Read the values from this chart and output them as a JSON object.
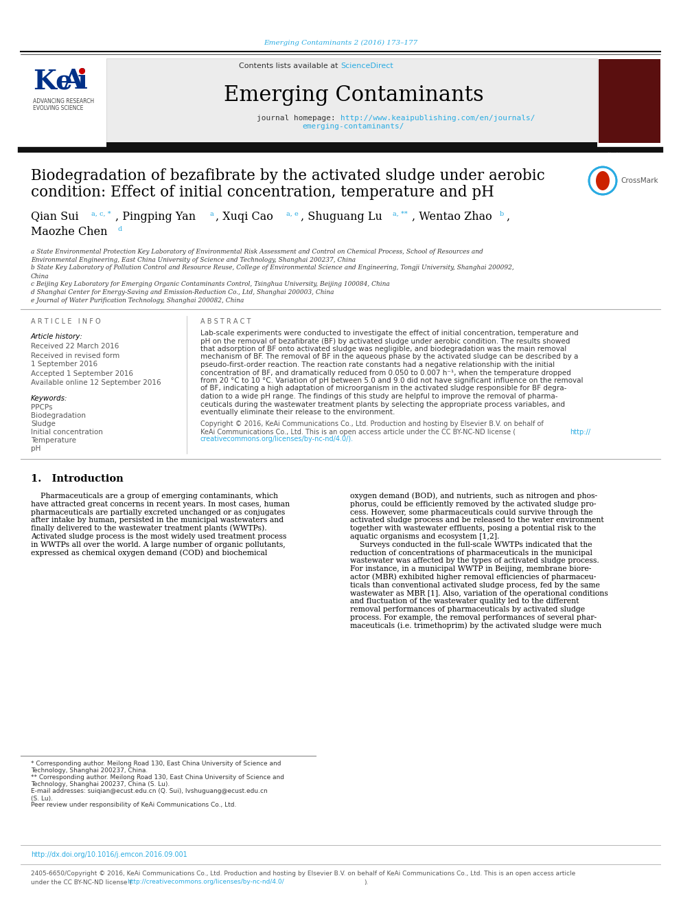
{
  "bg_color": "#ffffff",
  "journal_ref": "Emerging Contaminants 2 (2016) 173–177",
  "journal_ref_color": "#29ABE2",
  "header_bg": "#e8e8e8",
  "header_text_prefix": "Contents lists available at ",
  "header_sciencedirect": "ScienceDirect",
  "header_link_color": "#29ABE2",
  "journal_name": "Emerging Contaminants",
  "journal_homepage_prefix": "journal homepage: ",
  "journal_url_line1": "http://www.keaipublishing.com/en/journals/",
  "journal_url_line2": "emerging-contaminants/",
  "dark_bar_color": "#1a1a1a",
  "title_line1": "Biodegradation of bezafibrate by the activated sludge under aerobic",
  "title_line2": "condition: Effect of initial concentration, temperature and pH",
  "affiliation_a": "a State Environmental Protection Key Laboratory of Environmental Risk Assessment and Control on Chemical Process, School of Resources and\nEnvironmental Engineering, East China University of Science and Technology, Shanghai 200237, China",
  "affiliation_b": "b State Key Laboratory of Pollution Control and Resource Reuse, College of Environmental Science and Engineering, Tongji University, Shanghai 200092,\nChina",
  "affiliation_c": "c Beijing Key Laboratory for Emerging Organic Contaminants Control, Tsinghua University, Beijing 100084, China",
  "affiliation_d": "d Shanghai Center for Energy-Saving and Emission-Reduction Co., Ltd, Shanghai 200003, China",
  "affiliation_e": "e Journal of Water Purification Technology, Shanghai 200082, China",
  "article_info_title": "A R T I C L E   I N F O",
  "article_history_title": "Article history:",
  "received": "Received 22 March 2016",
  "revised_line1": "Received in revised form",
  "revised_line2": "1 September 2016",
  "accepted": "Accepted 1 September 2016",
  "available": "Available online 12 September 2016",
  "keywords_title": "Keywords:",
  "keywords": [
    "PPCPs",
    "Biodegradation",
    "Sludge",
    "Initial concentration",
    "Temperature",
    "pH"
  ],
  "abstract_title": "A B S T R A C T",
  "abstract_lines": [
    "Lab-scale experiments were conducted to investigate the effect of initial concentration, temperature and",
    "pH on the removal of bezafibrate (BF) by activated sludge under aerobic condition. The results showed",
    "that adsorption of BF onto activated sludge was negligible, and biodegradation was the main removal",
    "mechanism of BF. The removal of BF in the aqueous phase by the activated sludge can be described by a",
    "pseudo-first-order reaction. The reaction rate constants had a negative relationship with the initial",
    "concentration of BF, and dramatically reduced from 0.050 to 0.007 h⁻¹, when the temperature dropped",
    "from 20 °C to 10 °C. Variation of pH between 5.0 and 9.0 did not have significant influence on the removal",
    "of BF, indicating a high adaptation of microorganism in the activated sludge responsible for BF degra-",
    "dation to a wide pH range. The findings of this study are helpful to improve the removal of pharma-",
    "ceuticals during the wastewater treatment plants by selecting the appropriate process variables, and",
    "eventually eliminate their release to the environment."
  ],
  "copyright_line1": "Copyright © 2016, KeAi Communications Co., Ltd. Production and hosting by Elsevier B.V. on behalf of",
  "copyright_line2": "KeAi Communications Co., Ltd. This is an open access article under the CC BY-NC-ND license (",
  "copyright_link1": "http://",
  "copyright_line3_link": "creativecommons.org/licenses/by-nc-nd/4.0/).",
  "copyright_link_color": "#29ABE2",
  "section1_title": "1.   Introduction",
  "intro_left_lines": [
    "    Pharmaceuticals are a group of emerging contaminants, which",
    "have attracted great concerns in recent years. In most cases, human",
    "pharmaceuticals are partially excreted unchanged or as conjugates",
    "after intake by human, persisted in the municipal wastewaters and",
    "finally delivered to the wastewater treatment plants (WWTPs).",
    "Activated sludge process is the most widely used treatment process",
    "in WWTPs all over the world. A large number of organic pollutants,",
    "expressed as chemical oxygen demand (COD) and biochemical"
  ],
  "intro_right_lines": [
    "oxygen demand (BOD), and nutrients, such as nitrogen and phos-",
    "phorus, could be efficiently removed by the activated sludge pro-",
    "cess. However, some pharmaceuticals could survive through the",
    "activated sludge process and be released to the water environment",
    "together with wastewater effluents, posing a potential risk to the",
    "aquatic organisms and ecosystem [1,2].",
    "    Surveys conducted in the full-scale WWTPs indicated that the",
    "reduction of concentrations of pharmaceuticals in the municipal",
    "wastewater was affected by the types of activated sludge process.",
    "For instance, in a municipal WWTP in Beijing, membrane biore-",
    "actor (MBR) exhibited higher removal efficiencies of pharmaceu-",
    "ticals than conventional activated sludge process, fed by the same",
    "wastewater as MBR [1]. Also, variation of the operational conditions",
    "and fluctuation of the wastewater quality led to the different",
    "removal performances of pharmaceuticals by activated sludge",
    "process. For example, the removal performances of several phar-",
    "maceuticals (i.e. trimethoprim) by the activated sludge were much"
  ],
  "footnote_star_line1": "* Corresponding author. Meilong Road 130, East China University of Science and",
  "footnote_star_line2": "Technology, Shanghai 200237, China.",
  "footnote_dstar_line1": "** Corresponding author. Meilong Road 130, East China University of Science and",
  "footnote_dstar_line2": "Technology, Shanghai 200237, China (S. Lu).",
  "footnote_email_line1": "E-mail addresses: suiqian@ecust.edu.cn (Q. Sui), lvshuguang@ecust.edu.cn",
  "footnote_email_line2": "(S. Lu).",
  "footnote_peer": "Peer review under responsibility of KeAi Communications Co., Ltd.",
  "doi_text": "http://dx.doi.org/10.1016/j.emcon.2016.09.001",
  "bottom_line1": "2405-6650/Copyright © 2016, KeAi Communications Co., Ltd. Production and hosting by Elsevier B.V. on behalf of KeAi Communications Co., Ltd. This is an open access article",
  "bottom_line2_prefix": "under the CC BY-NC-ND license (",
  "bottom_line2_link": "http://creativecommons.org/licenses/by-nc-nd/4.0/",
  "bottom_line2_suffix": ").",
  "text_color": "#000000",
  "small_text_color": "#333333",
  "link_color": "#29ABE2"
}
